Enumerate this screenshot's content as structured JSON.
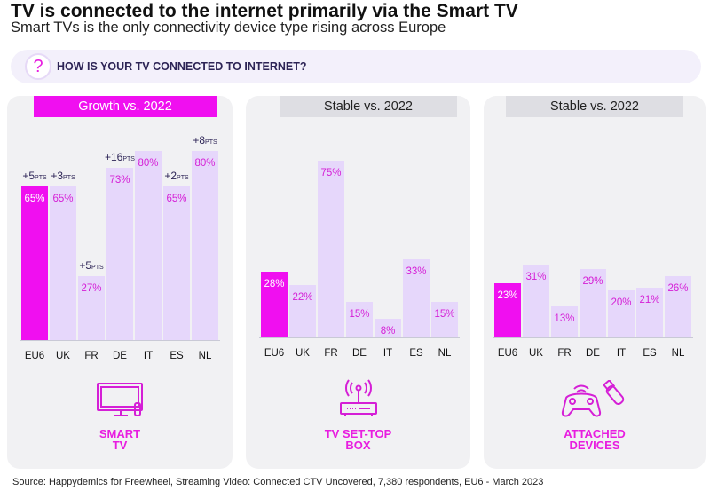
{
  "header": {
    "title": "TV is connected to the internet primarily via the Smart TV",
    "subtitle": "Smart TVs is the only connectivity device type rising across Europe",
    "question": "HOW IS YOUR TV CONNECTED TO INTERNET?",
    "question_icon": "?"
  },
  "chart_data": [
    {
      "type": "bar",
      "title": "Growth vs. 2022",
      "label": "SMART TV",
      "label_lines": [
        "SMART",
        "TV"
      ],
      "categories": [
        "EU6",
        "UK",
        "FR",
        "DE",
        "IT",
        "ES",
        "NL"
      ],
      "values": [
        65,
        65,
        27,
        73,
        80,
        65,
        80
      ],
      "value_labels": [
        "65%",
        "65%",
        "27%",
        "73%",
        "80%",
        "65%",
        "80%"
      ],
      "growth": [
        "+5",
        "+3",
        "+5",
        "+16",
        "",
        "+2",
        "+8"
      ],
      "growth_unit": "PTS",
      "highlight": "EU6",
      "ylim": [
        0,
        100
      ]
    },
    {
      "type": "bar",
      "title": "Stable vs. 2022",
      "label": "TV SET-TOP BOX",
      "label_lines": [
        "TV SET-TOP",
        "BOX"
      ],
      "categories": [
        "EU6",
        "UK",
        "FR",
        "DE",
        "IT",
        "ES",
        "NL"
      ],
      "values": [
        28,
        22,
        75,
        15,
        8,
        33,
        15
      ],
      "value_labels": [
        "28%",
        "22%",
        "75%",
        "15%",
        "8%",
        "33%",
        "15%"
      ],
      "highlight": "EU6",
      "ylim": [
        0,
        100
      ]
    },
    {
      "type": "bar",
      "title": "Stable vs. 2022",
      "label": "ATTACHED DEVICES",
      "label_lines": [
        "ATTACHED",
        "DEVICES"
      ],
      "categories": [
        "EU6",
        "UK",
        "FR",
        "DE",
        "IT",
        "ES",
        "NL"
      ],
      "values": [
        23,
        31,
        13,
        29,
        20,
        21,
        26
      ],
      "value_labels": [
        "23%",
        "31%",
        "13%",
        "29%",
        "20%",
        "21%",
        "26%"
      ],
      "highlight": "EU6",
      "ylim": [
        0,
        100
      ]
    }
  ],
  "colors": {
    "highlight": "#f00ff0",
    "bar": "#e6d7fb",
    "accent": "#d51fd6",
    "growth_header": "#f00ff0",
    "stable_header": "#dedee3"
  },
  "source": "Source: Happydemics for Freewheel, Streaming Video: Connected CTV Uncovered, 7,380 respondents, EU6 - March 2023"
}
